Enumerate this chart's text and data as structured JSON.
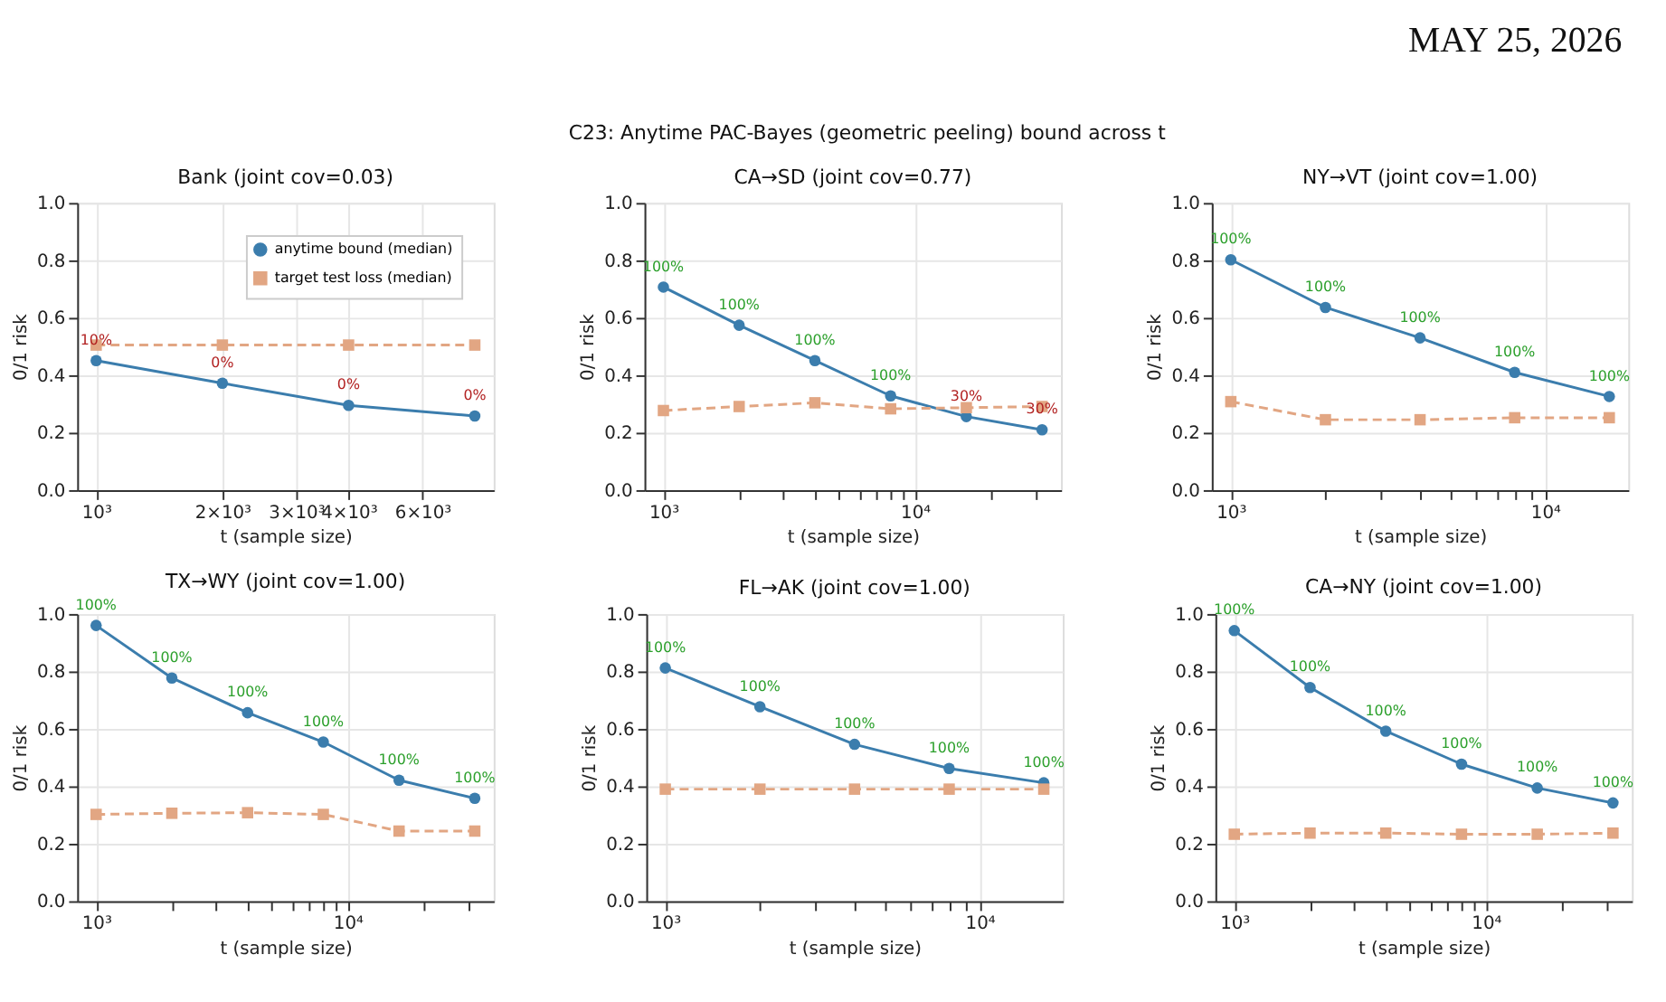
{
  "chart_data": [
    {
      "type": "line",
      "title": "Bank (joint cov=0.03)",
      "xlabel": "t (sample size)",
      "ylabel": "0/1 risk",
      "annotations": [
        "MAY 25, 2026",
        "C23: Anytime PAC-Bayes (geometric peeling) bound across t",
        {
          "text": "10%",
          "x": 1000,
          "y": 0.451
        },
        {
          "text": "0%",
          "x": 2000,
          "y": 0.372
        },
        {
          "text": "0%",
          "x": 4000,
          "y": 0.295
        },
        {
          "text": "0%",
          "x": 8000,
          "y": 0.258
        }
      ],
      "log": "x",
      "grid": true,
      "legend": "top right",
      "xlim": [
        901,
        8875
      ],
      "xticks": [
        {
          "value": 1000,
          "label": "10³"
        },
        {
          "value": 2000,
          "label": "2×10³"
        },
        {
          "value": 3000,
          "label": "3×10³"
        },
        {
          "value": 4000,
          "label": "4×10³"
        },
        {
          "value": 6000,
          "label": "6×10³"
        }
      ],
      "ylim": [
        0,
        1
      ],
      "yticks": [
        {
          "value": 0,
          "label": "0.0"
        },
        {
          "value": 0.2,
          "label": "0.2"
        },
        {
          "value": 0.4,
          "label": "0.4"
        },
        {
          "value": 0.6,
          "label": "0.6"
        },
        {
          "value": 0.8,
          "label": "0.8"
        },
        {
          "value": 1,
          "label": "1.0"
        }
      ],
      "x": [
        1000,
        2000,
        4000,
        8000
      ],
      "series": [
        {
          "name": "anytime bound (median)",
          "color": "#3b7dad",
          "marker": "circle",
          "line_style": "solid",
          "values": [
            0.451,
            0.372,
            0.295,
            0.258
          ]
        },
        {
          "name": "target test loss (median)",
          "color": "#e2a683",
          "marker": "square",
          "line_style": "dashed",
          "values": [
            0.505,
            0.505,
            0.505,
            0.505
          ]
        }
      ]
    },
    {
      "type": "line",
      "title": "CA→SD (joint cov=0.77)",
      "annotations": [
        {
          "text": "100%",
          "x": 1000,
          "y": 0.707
        },
        {
          "text": "100%",
          "x": 2000,
          "y": 0.574
        },
        {
          "text": "100%",
          "x": 4000,
          "y": 0.451
        },
        {
          "text": "100%",
          "x": 8000,
          "y": 0.328
        },
        {
          "text": "30%",
          "x": 16000,
          "y": 0.256
        },
        {
          "text": "30%",
          "x": 32000,
          "y": 0.21
        }
      ],
      "xlabel": "t (sample size)",
      "ylabel": "0/1 risk",
      "log": "x",
      "grid": true,
      "xlim": [
        841,
        38050
      ],
      "xticks": [
        {
          "value": 1000,
          "label": "10³"
        },
        {
          "value": 2000,
          "label": null
        },
        {
          "value": 3000,
          "label": null
        },
        {
          "value": 4000,
          "label": null
        },
        {
          "value": 5000,
          "label": null
        },
        {
          "value": 6000,
          "label": null
        },
        {
          "value": 7000,
          "label": null
        },
        {
          "value": 8000,
          "label": null
        },
        {
          "value": 9000,
          "label": null
        },
        {
          "value": 10000,
          "label": "10⁴"
        },
        {
          "value": 20000,
          "label": null
        },
        {
          "value": 30000,
          "label": null
        }
      ],
      "ylim": [
        0,
        1
      ],
      "yticks": [
        {
          "value": 0,
          "label": "0.0"
        },
        {
          "value": 0.2,
          "label": "0.2"
        },
        {
          "value": 0.4,
          "label": "0.4"
        },
        {
          "value": 0.6,
          "label": "0.6"
        },
        {
          "value": 0.8,
          "label": "0.8"
        },
        {
          "value": 1,
          "label": "1.0"
        }
      ],
      "x": [
        1000,
        2000,
        4000,
        8000,
        16000,
        32000
      ],
      "series": [
        {
          "color": "#3b7dad",
          "marker": "circle",
          "line_style": "solid",
          "values": [
            0.707,
            0.574,
            0.451,
            0.328,
            0.256,
            0.21
          ]
        },
        {
          "color": "#e2a683",
          "marker": "square",
          "line_style": "dashed",
          "values": [
            0.277,
            0.291,
            0.304,
            0.283,
            0.287,
            0.291
          ]
        }
      ]
    },
    {
      "type": "line",
      "title": "NY→VT (joint cov=1.00)",
      "annotations": [
        {
          "text": "100%",
          "x": 1000,
          "y": 0.802
        },
        {
          "text": "100%",
          "x": 2000,
          "y": 0.636
        },
        {
          "text": "100%",
          "x": 4000,
          "y": 0.53
        },
        {
          "text": "100%",
          "x": 8000,
          "y": 0.41
        },
        {
          "text": "100%",
          "x": 16000,
          "y": 0.326
        }
      ],
      "xlabel": "t (sample size)",
      "ylabel": "0/1 risk",
      "log": "x",
      "grid": true,
      "xlim": [
        870,
        18390
      ],
      "xticks": [
        {
          "value": 1000,
          "label": "10³"
        },
        {
          "value": 2000,
          "label": null
        },
        {
          "value": 3000,
          "label": null
        },
        {
          "value": 4000,
          "label": null
        },
        {
          "value": 5000,
          "label": null
        },
        {
          "value": 6000,
          "label": null
        },
        {
          "value": 7000,
          "label": null
        },
        {
          "value": 8000,
          "label": null
        },
        {
          "value": 9000,
          "label": null
        },
        {
          "value": 10000,
          "label": "10⁴"
        }
      ],
      "ylim": [
        0,
        1
      ],
      "yticks": [
        {
          "value": 0,
          "label": "0.0"
        },
        {
          "value": 0.2,
          "label": "0.2"
        },
        {
          "value": 0.4,
          "label": "0.4"
        },
        {
          "value": 0.6,
          "label": "0.6"
        },
        {
          "value": 0.8,
          "label": "0.8"
        },
        {
          "value": 1,
          "label": "1.0"
        }
      ],
      "x": [
        1000,
        2000,
        4000,
        8000,
        16000
      ],
      "series": [
        {
          "color": "#3b7dad",
          "marker": "circle",
          "line_style": "solid",
          "values": [
            0.802,
            0.636,
            0.53,
            0.41,
            0.326
          ]
        },
        {
          "color": "#e2a683",
          "marker": "square",
          "line_style": "dashed",
          "values": [
            0.308,
            0.245,
            0.245,
            0.252,
            0.252
          ]
        }
      ]
    },
    {
      "type": "line",
      "title": "TX→WY (joint cov=1.00)",
      "annotations": [
        {
          "text": "100%",
          "x": 1000,
          "y": 0.96
        },
        {
          "text": "100%",
          "x": 2000,
          "y": 0.777
        },
        {
          "text": "100%",
          "x": 4000,
          "y": 0.656
        },
        {
          "text": "100%",
          "x": 8000,
          "y": 0.554
        },
        {
          "text": "100%",
          "x": 16000,
          "y": 0.421
        },
        {
          "text": "100%",
          "x": 32000,
          "y": 0.358
        }
      ],
      "xlabel": "t (sample size)",
      "ylabel": "0/1 risk",
      "log": "x",
      "grid": true,
      "xlim": [
        841,
        38050
      ],
      "xticks": [
        {
          "value": 1000,
          "label": "10³"
        },
        {
          "value": 2000,
          "label": null
        },
        {
          "value": 3000,
          "label": null
        },
        {
          "value": 4000,
          "label": null
        },
        {
          "value": 5000,
          "label": null
        },
        {
          "value": 6000,
          "label": null
        },
        {
          "value": 7000,
          "label": null
        },
        {
          "value": 8000,
          "label": null
        },
        {
          "value": 9000,
          "label": null
        },
        {
          "value": 10000,
          "label": "10⁴"
        },
        {
          "value": 20000,
          "label": null
        },
        {
          "value": 30000,
          "label": null
        }
      ],
      "ylim": [
        0,
        1
      ],
      "yticks": [
        {
          "value": 0,
          "label": "0.0"
        },
        {
          "value": 0.2,
          "label": "0.2"
        },
        {
          "value": 0.4,
          "label": "0.4"
        },
        {
          "value": 0.6,
          "label": "0.6"
        },
        {
          "value": 0.8,
          "label": "0.8"
        },
        {
          "value": 1,
          "label": "1.0"
        }
      ],
      "x": [
        1000,
        2000,
        4000,
        8000,
        16000,
        32000
      ],
      "series": [
        {
          "color": "#3b7dad",
          "marker": "circle",
          "line_style": "solid",
          "values": [
            0.96,
            0.777,
            0.656,
            0.554,
            0.421,
            0.358
          ]
        },
        {
          "color": "#e2a683",
          "marker": "square",
          "line_style": "dashed",
          "values": [
            0.302,
            0.306,
            0.308,
            0.302,
            0.244,
            0.244
          ]
        }
      ]
    },
    {
      "type": "line",
      "title": "FL→AK (joint cov=1.00)",
      "annotations": [
        {
          "text": "100%",
          "x": 1000,
          "y": 0.812
        },
        {
          "text": "100%",
          "x": 2000,
          "y": 0.677
        },
        {
          "text": "100%",
          "x": 4000,
          "y": 0.546
        },
        {
          "text": "100%",
          "x": 8000,
          "y": 0.462
        },
        {
          "text": "100%",
          "x": 16000,
          "y": 0.412
        }
      ],
      "xlabel": "t (sample size)",
      "ylabel": "0/1 risk",
      "log": "x",
      "grid": true,
      "xlim": [
        870,
        18390
      ],
      "xticks": [
        {
          "value": 1000,
          "label": "10³"
        },
        {
          "value": 2000,
          "label": null
        },
        {
          "value": 3000,
          "label": null
        },
        {
          "value": 4000,
          "label": null
        },
        {
          "value": 5000,
          "label": null
        },
        {
          "value": 6000,
          "label": null
        },
        {
          "value": 7000,
          "label": null
        },
        {
          "value": 8000,
          "label": null
        },
        {
          "value": 9000,
          "label": null
        },
        {
          "value": 10000,
          "label": "10⁴"
        }
      ],
      "ylim": [
        0,
        1
      ],
      "yticks": [
        {
          "value": 0,
          "label": "0.0"
        },
        {
          "value": 0.2,
          "label": "0.2"
        },
        {
          "value": 0.4,
          "label": "0.4"
        },
        {
          "value": 0.6,
          "label": "0.6"
        },
        {
          "value": 0.8,
          "label": "0.8"
        },
        {
          "value": 1,
          "label": "1.0"
        }
      ],
      "x": [
        1000,
        2000,
        4000,
        8000,
        16000
      ],
      "series": [
        {
          "color": "#3b7dad",
          "marker": "circle",
          "line_style": "solid",
          "values": [
            0.812,
            0.677,
            0.546,
            0.462,
            0.412
          ]
        },
        {
          "color": "#e2a683",
          "marker": "square",
          "line_style": "dashed",
          "values": [
            0.39,
            0.39,
            0.39,
            0.39,
            0.39
          ]
        }
      ]
    },
    {
      "type": "line",
      "title": "CA→NY (joint cov=1.00)",
      "annotations": [
        {
          "text": "100%",
          "x": 1000,
          "y": 0.942
        },
        {
          "text": "100%",
          "x": 2000,
          "y": 0.744
        },
        {
          "text": "100%",
          "x": 4000,
          "y": 0.592
        },
        {
          "text": "100%",
          "x": 8000,
          "y": 0.477
        },
        {
          "text": "100%",
          "x": 16000,
          "y": 0.394
        },
        {
          "text": "100%",
          "x": 32000,
          "y": 0.342
        }
      ],
      "xlabel": "t (sample size)",
      "ylabel": "0/1 risk",
      "log": "x",
      "grid": true,
      "xlim": [
        841,
        38050
      ],
      "xticks": [
        {
          "value": 1000,
          "label": "10³"
        },
        {
          "value": 2000,
          "label": null
        },
        {
          "value": 3000,
          "label": null
        },
        {
          "value": 4000,
          "label": null
        },
        {
          "value": 5000,
          "label": null
        },
        {
          "value": 6000,
          "label": null
        },
        {
          "value": 7000,
          "label": null
        },
        {
          "value": 8000,
          "label": null
        },
        {
          "value": 9000,
          "label": null
        },
        {
          "value": 10000,
          "label": "10⁴"
        },
        {
          "value": 20000,
          "label": null
        },
        {
          "value": 30000,
          "label": null
        }
      ],
      "ylim": [
        0,
        1
      ],
      "yticks": [
        {
          "value": 0,
          "label": "0.0"
        },
        {
          "value": 0.2,
          "label": "0.2"
        },
        {
          "value": 0.4,
          "label": "0.4"
        },
        {
          "value": 0.6,
          "label": "0.6"
        },
        {
          "value": 0.8,
          "label": "0.8"
        },
        {
          "value": 1,
          "label": "1.0"
        }
      ],
      "x": [
        1000,
        2000,
        4000,
        8000,
        16000,
        32000
      ],
      "series": [
        {
          "color": "#3b7dad",
          "marker": "circle",
          "line_style": "solid",
          "values": [
            0.942,
            0.744,
            0.592,
            0.477,
            0.394,
            0.342
          ]
        },
        {
          "color": "#e2a683",
          "marker": "square",
          "line_style": "dashed",
          "values": [
            0.233,
            0.237,
            0.237,
            0.233,
            0.233,
            0.237
          ]
        }
      ]
    }
  ]
}
